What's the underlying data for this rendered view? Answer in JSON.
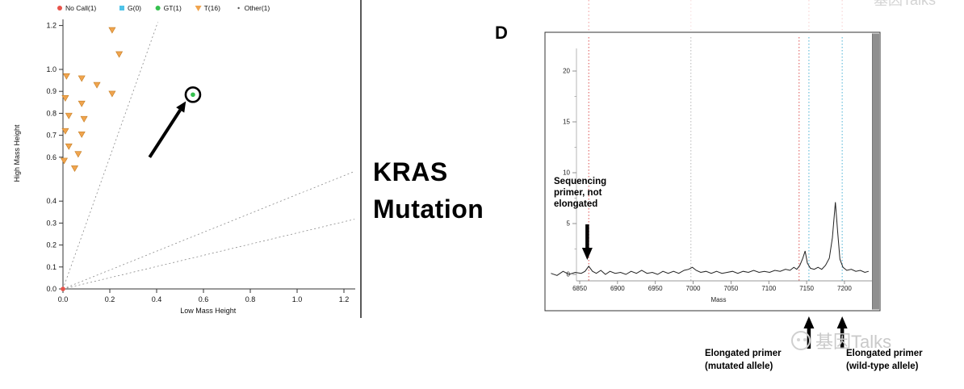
{
  "page": {
    "background": "#ffffff"
  },
  "center_label": {
    "line1": "KRAS",
    "line2": "Mutation"
  },
  "panel_label": "D",
  "watermark": {
    "text": "基因Talks"
  },
  "chart_data": [
    {
      "type": "scatter",
      "title": "",
      "xlabel": "Low Mass Height",
      "ylabel": "High Mass Height",
      "xlim": [
        0,
        1.24
      ],
      "ylim": [
        0,
        1.2
      ],
      "x_ticks": [
        0.0,
        0.2,
        0.4,
        0.6,
        0.8,
        1.0,
        1.2
      ],
      "y_ticks": [
        0.0,
        0.1,
        0.2,
        0.3,
        0.4,
        0.6,
        0.7,
        0.8,
        0.9,
        1.0,
        1.2
      ],
      "grid": false,
      "legend_position": "top",
      "legend": [
        {
          "label": "No Call(1)",
          "marker": "circle",
          "color": "#e8534a"
        },
        {
          "label": "G(0)",
          "marker": "square",
          "color": "#4fc3e8"
        },
        {
          "label": "GT(1)",
          "marker": "circle",
          "color": "#35c04e"
        },
        {
          "label": "T(16)",
          "marker": "triangle-down",
          "color": "#f0a44e"
        },
        {
          "label": "Other(1)",
          "marker": "dot",
          "color": "#555555"
        }
      ],
      "guide_lines": {
        "style": "dashed",
        "slopes": [
          3.0,
          0.43,
          0.255
        ],
        "color": "#8a8a8a"
      },
      "series": [
        {
          "name": "T(16)",
          "marker": "triangle-down",
          "color": "#f0a44e",
          "points": [
            [
              0.21,
              1.18
            ],
            [
              0.24,
              1.07
            ],
            [
              0.015,
              0.97
            ],
            [
              0.08,
              0.96
            ],
            [
              0.145,
              0.93
            ],
            [
              0.21,
              0.89
            ],
            [
              0.01,
              0.87
            ],
            [
              0.08,
              0.845
            ],
            [
              0.025,
              0.79
            ],
            [
              0.09,
              0.775
            ],
            [
              0.01,
              0.72
            ],
            [
              0.08,
              0.705
            ],
            [
              0.025,
              0.65
            ],
            [
              0.065,
              0.615
            ],
            [
              0.005,
              0.585
            ],
            [
              0.05,
              0.55
            ]
          ]
        },
        {
          "name": "GT(1)",
          "marker": "circle",
          "color": "#35c04e",
          "points": [
            [
              0.555,
              0.885
            ]
          ]
        },
        {
          "name": "No Call(1)",
          "marker": "circle",
          "color": "#e8534a",
          "points": [
            [
              0.0,
              0.0
            ]
          ]
        }
      ],
      "annotations": [
        {
          "type": "circle-highlight",
          "at": [
            0.555,
            0.885
          ]
        },
        {
          "type": "arrow",
          "from": [
            0.37,
            0.6
          ],
          "to": [
            0.525,
            0.855
          ]
        }
      ]
    },
    {
      "type": "line",
      "title": "",
      "xlabel": "Mass",
      "ylabel": "",
      "xlim": [
        6810,
        7245
      ],
      "ylim": [
        -0.8,
        23
      ],
      "x_ticks": [
        6850,
        6900,
        6950,
        7000,
        7050,
        7100,
        7150,
        7200
      ],
      "y_ticks": [
        0,
        5,
        10,
        15,
        20
      ],
      "y_minor_ticks": [
        2.5,
        7.5,
        12.5,
        17.5
      ],
      "vlines": [
        {
          "x": 6862,
          "color": "#e06060",
          "style": "dotted"
        },
        {
          "x": 6997,
          "color": "#bdbdbd",
          "style": "dotted"
        },
        {
          "x": 7140,
          "color": "#e06060",
          "style": "dotted"
        },
        {
          "x": 7153,
          "color": "#58b8d8",
          "style": "dotted"
        },
        {
          "x": 7197,
          "color": "#58b8d8",
          "style": "dotted"
        }
      ],
      "vlines_above": [
        {
          "x": 6862,
          "color": "#f09a9a",
          "opacity": 0.85
        },
        {
          "x": 6997,
          "color": "#f4c4c4",
          "opacity": 0.5
        },
        {
          "x": 7153,
          "color": "#f4b4b4",
          "opacity": 0.55
        },
        {
          "x": 7197,
          "color": "#f4b4b4",
          "opacity": 0.55
        }
      ],
      "peaks": [
        {
          "mass": 6862,
          "intensity": 0.8,
          "label": "sequencing primer"
        },
        {
          "mass": 7148,
          "intensity": 2.3,
          "label": "elongated primer mutated allele"
        },
        {
          "mass": 7188,
          "intensity": 7.1,
          "label": "elongated primer wild-type allele"
        }
      ],
      "trace": [
        [
          6812,
          0.1
        ],
        [
          6820,
          -0.1
        ],
        [
          6828,
          0.3
        ],
        [
          6836,
          0.0
        ],
        [
          6844,
          0.2
        ],
        [
          6852,
          0.1
        ],
        [
          6857,
          0.3
        ],
        [
          6862,
          0.8
        ],
        [
          6867,
          0.3
        ],
        [
          6872,
          0.1
        ],
        [
          6878,
          0.4
        ],
        [
          6884,
          0.0
        ],
        [
          6890,
          0.3
        ],
        [
          6897,
          0.1
        ],
        [
          6904,
          0.2
        ],
        [
          6911,
          0.0
        ],
        [
          6918,
          0.3
        ],
        [
          6925,
          0.1
        ],
        [
          6932,
          0.4
        ],
        [
          6939,
          0.1
        ],
        [
          6946,
          0.2
        ],
        [
          6953,
          0.0
        ],
        [
          6960,
          0.3
        ],
        [
          6967,
          0.1
        ],
        [
          6974,
          0.3
        ],
        [
          6981,
          0.1
        ],
        [
          6988,
          0.4
        ],
        [
          6994,
          0.5
        ],
        [
          6999,
          0.7
        ],
        [
          7004,
          0.4
        ],
        [
          7010,
          0.2
        ],
        [
          7017,
          0.3
        ],
        [
          7024,
          0.1
        ],
        [
          7031,
          0.3
        ],
        [
          7038,
          0.1
        ],
        [
          7045,
          0.2
        ],
        [
          7052,
          0.3
        ],
        [
          7059,
          0.1
        ],
        [
          7066,
          0.3
        ],
        [
          7073,
          0.2
        ],
        [
          7080,
          0.4
        ],
        [
          7087,
          0.2
        ],
        [
          7094,
          0.3
        ],
        [
          7101,
          0.2
        ],
        [
          7108,
          0.4
        ],
        [
          7115,
          0.3
        ],
        [
          7122,
          0.5
        ],
        [
          7128,
          0.4
        ],
        [
          7133,
          0.7
        ],
        [
          7137,
          0.5
        ],
        [
          7141,
          0.9
        ],
        [
          7145,
          1.6
        ],
        [
          7148,
          2.3
        ],
        [
          7151,
          1.1
        ],
        [
          7155,
          0.6
        ],
        [
          7160,
          0.5
        ],
        [
          7165,
          0.7
        ],
        [
          7170,
          0.5
        ],
        [
          7175,
          0.9
        ],
        [
          7180,
          1.6
        ],
        [
          7184,
          3.6
        ],
        [
          7188,
          7.1
        ],
        [
          7191,
          4.2
        ],
        [
          7194,
          1.5
        ],
        [
          7198,
          0.7
        ],
        [
          7203,
          0.4
        ],
        [
          7209,
          0.5
        ],
        [
          7215,
          0.3
        ],
        [
          7221,
          0.4
        ],
        [
          7227,
          0.2
        ],
        [
          7232,
          0.3
        ]
      ],
      "annotations": {
        "seq_primer": {
          "lines": [
            "Sequencing",
            "primer, not",
            "elongated"
          ],
          "arrow_x": 6860
        },
        "mutated": {
          "lines": [
            "Elongated primer",
            "(mutated allele)"
          ],
          "arrow_x": 7153
        },
        "wildtype": {
          "lines": [
            "Elongated primer",
            "(wild-type allele)"
          ],
          "arrow_x": 7197
        }
      }
    }
  ]
}
